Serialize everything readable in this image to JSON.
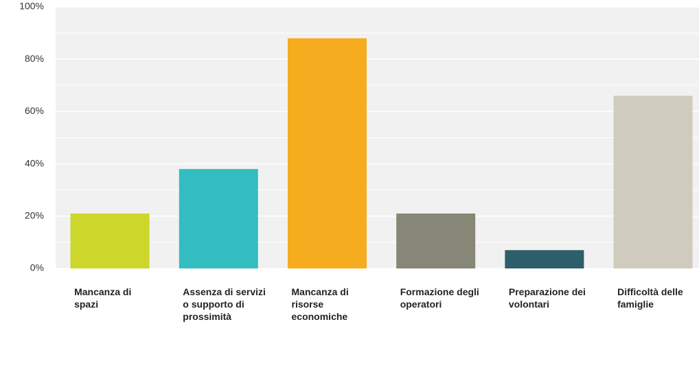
{
  "chart_data": {
    "type": "bar",
    "categories": [
      "Mancanza di spazi",
      "Assenza di servizi o supporto di prossimità",
      "Mancanza di risorse economiche",
      "Formazione degli operatori",
      "Preparazione dei volontari",
      "Difficoltà delle famiglie"
    ],
    "values": [
      21,
      38,
      88,
      21,
      7,
      66
    ],
    "colors": [
      "#cdd62a",
      "#33bdc0",
      "#f5ac1e",
      "#868776",
      "#2c5e6b",
      "#cfccbd"
    ],
    "ylim": [
      0,
      100
    ],
    "yticks": [
      {
        "value": 0,
        "label": "0%"
      },
      {
        "value": 20,
        "label": "20%"
      },
      {
        "value": 40,
        "label": "40%"
      },
      {
        "value": 60,
        "label": "60%"
      },
      {
        "value": 80,
        "label": "80%"
      },
      {
        "value": 100,
        "label": "100%"
      }
    ],
    "minor_yticks": [
      10,
      30,
      50,
      70,
      90
    ],
    "grid": true
  }
}
